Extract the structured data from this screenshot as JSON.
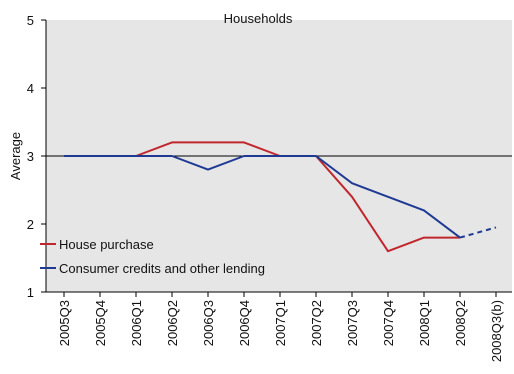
{
  "chart_data": {
    "type": "line",
    "title": "Households",
    "xlabel": "",
    "ylabel": "Average",
    "ylim": [
      1,
      5
    ],
    "yticks": [
      1,
      2,
      3,
      4,
      5
    ],
    "reference_line": 3,
    "categories": [
      "2005Q3",
      "2005Q4",
      "2006Q1",
      "2006Q2",
      "2006Q3",
      "2006Q4",
      "2007Q1",
      "2007Q2",
      "2007Q3",
      "2007Q4",
      "2008Q1",
      "2008Q2",
      "2008Q3(b)"
    ],
    "grid": false,
    "legend_position": "bottom-left",
    "series": [
      {
        "name": "House purchase",
        "color": "#c0272d",
        "values": [
          3.0,
          3.0,
          3.0,
          3.2,
          3.2,
          3.2,
          3.0,
          3.0,
          2.4,
          1.6,
          1.8,
          1.8,
          null
        ]
      },
      {
        "name": "Consumer credits and other lending",
        "color": "#1f3a93",
        "values": [
          3.0,
          3.0,
          3.0,
          3.0,
          2.8,
          3.0,
          3.0,
          3.0,
          2.6,
          2.4,
          2.2,
          1.8,
          1.95
        ],
        "dashed_last_segment": true
      }
    ]
  }
}
